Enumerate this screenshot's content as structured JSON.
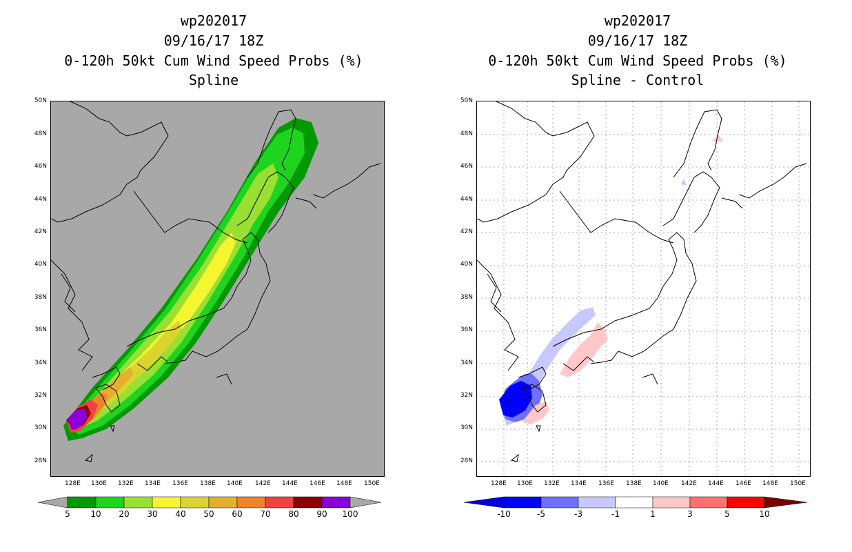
{
  "left_panel": {
    "title_lines": [
      "wp202017",
      "09/16/17 18Z",
      "0-120h 50kt Cum Wind Speed Probs (%)",
      "Spline"
    ],
    "lat_labels": [
      "50N",
      "48N",
      "46N",
      "44N",
      "42N",
      "40N",
      "38N",
      "36N",
      "34N",
      "32N",
      "30N",
      "28N"
    ],
    "lon_labels": [
      "128E",
      "130E",
      "132E",
      "134E",
      "136E",
      "138E",
      "140E",
      "142E",
      "144E",
      "146E",
      "148E",
      "150E"
    ],
    "colorbar": {
      "labels": [
        "5",
        "10",
        "20",
        "30",
        "40",
        "50",
        "60",
        "70",
        "80",
        "90",
        "100"
      ],
      "colors": [
        "#009a00",
        "#1fd41f",
        "#99e033",
        "#f5f530",
        "#dcd42e",
        "#e3b02f",
        "#ef8428",
        "#f24040",
        "#8c0000",
        "#8a00d6"
      ],
      "under_color": "#a8a8a8",
      "over_color": "#a8a8a8"
    }
  },
  "right_panel": {
    "title_lines": [
      "wp202017",
      "09/16/17 18Z",
      "0-120h 50kt Cum Wind Speed Probs (%)",
      "Spline - Control"
    ],
    "lat_labels": [
      "50N",
      "48N",
      "46N",
      "44N",
      "42N",
      "40N",
      "38N",
      "36N",
      "34N",
      "32N",
      "30N",
      "28N"
    ],
    "lon_labels": [
      "128E",
      "130E",
      "132E",
      "134E",
      "136E",
      "138E",
      "140E",
      "142E",
      "144E",
      "146E",
      "148E",
      "150E"
    ],
    "colorbar": {
      "labels": [
        "-10",
        "-5",
        "-3",
        "-1",
        "1",
        "3",
        "5",
        "10"
      ],
      "colors": [
        "#0000dc",
        "#0000ff",
        "#7070ff",
        "#c8c8ff",
        "#ffffff",
        "#ffc8c8",
        "#ff7070",
        "#ff0000",
        "#780000"
      ]
    }
  }
}
